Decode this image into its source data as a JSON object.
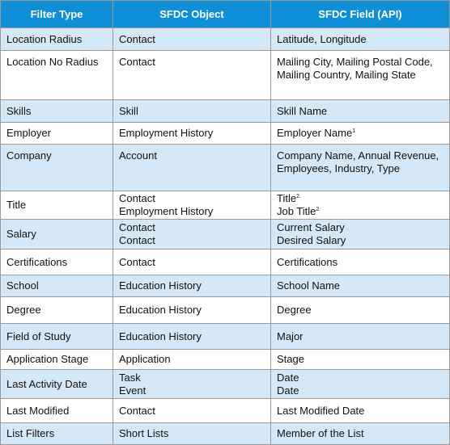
{
  "table": {
    "headers": [
      "Filter Type",
      "SFDC Object",
      "SFDC Field (API)"
    ],
    "rows": [
      [
        [
          "Location Radius"
        ],
        [
          "Contact"
        ],
        [
          "Latitude, Longitude"
        ]
      ],
      [
        [
          "Location No Radius"
        ],
        [
          "Contact"
        ],
        [
          "Mailing City, Mailing Postal Code, Mailing Country, Mailing State"
        ]
      ],
      [
        [
          "Skills"
        ],
        [
          "Skill"
        ],
        [
          "Skill Name"
        ]
      ],
      [
        [
          "Employer"
        ],
        [
          "Employment History"
        ],
        [
          {
            "text": "Employer Name",
            "sup": "1"
          }
        ]
      ],
      [
        [
          "Company"
        ],
        [
          "Account"
        ],
        [
          "Company Name, Annual Revenue, Employees, Industry, Type"
        ]
      ],
      [
        [
          "Title"
        ],
        [
          "Contact",
          "Employment History"
        ],
        [
          {
            "text": "Title",
            "sup": "2"
          },
          {
            "text": "Job Title",
            "sup": "2"
          }
        ]
      ],
      [
        [
          "Salary"
        ],
        [
          "Contact",
          "Contact"
        ],
        [
          "Current Salary",
          "Desired Salary"
        ]
      ],
      [
        [
          "Certifications"
        ],
        [
          "Contact"
        ],
        [
          "Certifications"
        ]
      ],
      [
        [
          "School"
        ],
        [
          "Education History"
        ],
        [
          "School Name"
        ]
      ],
      [
        [
          "Degree"
        ],
        [
          "Education History"
        ],
        [
          "Degree"
        ]
      ],
      [
        [
          "Field of Study"
        ],
        [
          "Education History"
        ],
        [
          "Major"
        ]
      ],
      [
        [
          "Application Stage"
        ],
        [
          "Application"
        ],
        [
          "Stage"
        ]
      ],
      [
        [
          "Last Activity Date"
        ],
        [
          "Task",
          "Event"
        ],
        [
          "Date",
          "Date"
        ]
      ],
      [
        [
          "Last Modified"
        ],
        [
          "Contact"
        ],
        [
          "Last Modified Date"
        ]
      ],
      [
        [
          "List Filters"
        ],
        [
          "Short Lists"
        ],
        [
          "Member of the List"
        ]
      ]
    ]
  }
}
